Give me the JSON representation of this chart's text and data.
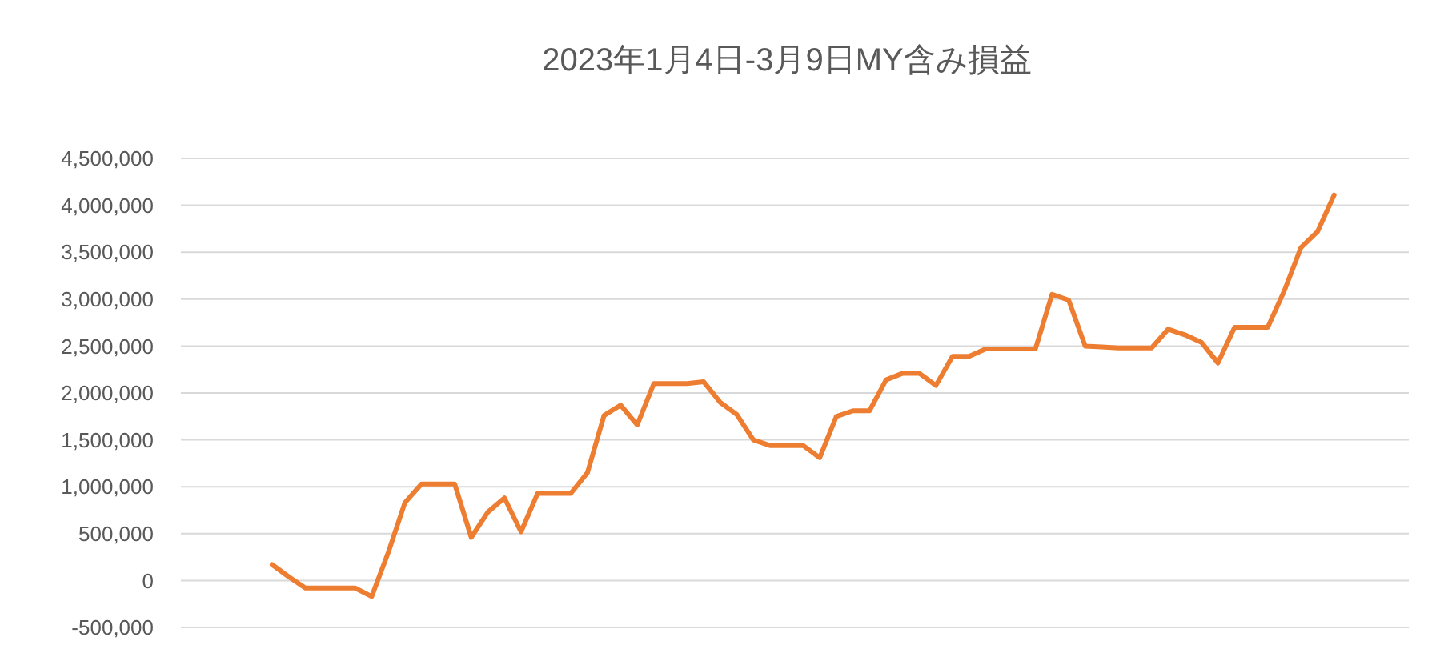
{
  "chart_data": {
    "type": "line",
    "title": "2023年1月4日-3月9日MY含み損益",
    "categories": [
      null,
      null,
      null,
      null,
      null,
      null,
      null,
      null,
      null,
      null,
      null,
      null,
      null,
      null,
      null,
      null,
      null,
      null,
      null,
      null,
      null,
      null,
      null,
      null,
      null,
      null,
      null,
      null,
      null,
      null,
      null,
      null,
      null,
      null,
      null,
      null,
      null,
      null,
      null,
      null,
      null,
      null,
      null,
      null,
      null,
      null,
      null,
      null,
      null,
      null,
      null,
      null,
      null,
      null,
      null,
      null,
      null,
      null,
      null,
      null,
      null,
      null,
      null,
      null,
      null,
      null,
      null,
      null,
      null,
      null,
      null,
      null,
      null,
      null
    ],
    "series": [
      {
        "color": "#ed7d31",
        "values": [
          null,
          null,
          null,
          null,
          null,
          170000,
          40000,
          -80000,
          -80000,
          -80000,
          -80000,
          -170000,
          300000,
          830000,
          1030000,
          1030000,
          1030000,
          460000,
          730000,
          880000,
          520000,
          930000,
          930000,
          930000,
          1150000,
          1760000,
          1870000,
          1660000,
          2100000,
          2100000,
          2100000,
          2120000,
          1900000,
          1770000,
          1500000,
          1440000,
          1440000,
          1440000,
          1310000,
          1750000,
          1810000,
          1810000,
          2140000,
          2210000,
          2210000,
          2080000,
          2390000,
          2390000,
          2470000,
          2470000,
          2470000,
          2470000,
          3050000,
          2990000,
          2500000,
          2490000,
          2480000,
          2480000,
          2480000,
          2680000,
          2620000,
          2540000,
          2320000,
          2700000,
          2700000,
          2700000,
          3090000,
          3550000,
          3720000,
          4110000,
          null,
          null,
          null,
          null
        ]
      }
    ],
    "ylim": [
      -500000,
      4500000
    ],
    "yticks": [
      {
        "value": -500000,
        "label": "-500,000"
      },
      0,
      {
        "value": 500000,
        "label": "500,000"
      },
      {
        "value": 1000000,
        "label": "1,000,000"
      },
      {
        "value": 1500000,
        "label": "1,500,000"
      },
      {
        "value": 2000000,
        "label": "2,000,000"
      },
      {
        "value": 2500000,
        "label": "2,500,000"
      },
      {
        "value": 3000000,
        "label": "3,000,000"
      },
      {
        "value": 3500000,
        "label": "3,500,000"
      },
      {
        "value": 4000000,
        "label": "4,000,000"
      },
      {
        "value": 4500000,
        "label": "4,500,000"
      }
    ],
    "grid": "y",
    "marker": "none",
    "line_style": "solid"
  }
}
